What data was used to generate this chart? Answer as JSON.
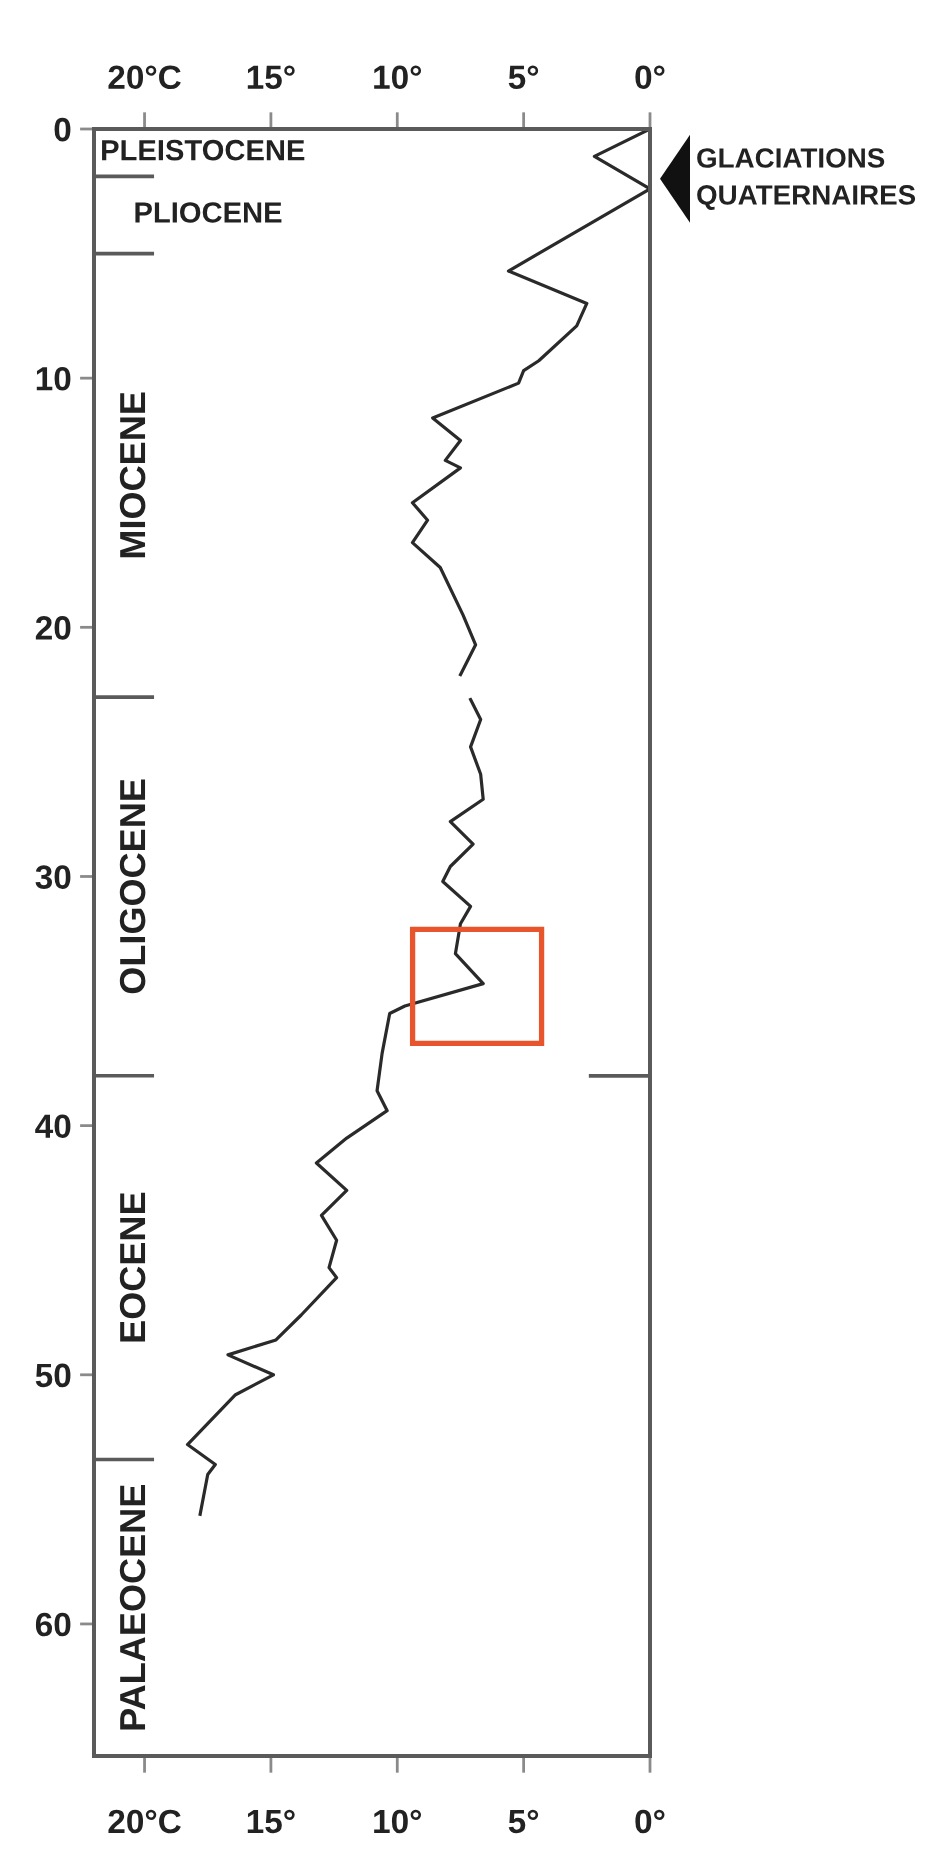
{
  "chart_data": {
    "type": "line",
    "color": "#2a2a2a",
    "x": [
      0,
      2.2,
      0,
      5.6,
      2.5,
      2.9,
      4.4,
      5.0,
      5.2,
      8.6,
      7.5,
      8.1,
      7.5,
      9.4,
      8.8,
      9.4,
      8.3,
      7.4,
      6.9,
      7.5,
      null,
      7.1,
      6.7,
      7.1,
      6.7,
      6.6,
      7.9,
      7.0,
      7.9,
      8.2,
      7.1,
      7.5,
      7.7,
      6.6,
      9.7,
      10.3,
      10.6,
      10.8,
      10.4,
      12.0,
      13.2,
      12.0,
      13.0,
      12.4,
      12.7,
      12.4,
      13.8,
      14.8,
      16.7,
      14.9,
      16.4,
      18.3,
      17.2,
      17.5,
      17.8
    ],
    "values": [
      0,
      1.1,
      2.4,
      5.7,
      7.0,
      7.9,
      9.3,
      9.7,
      10.2,
      11.6,
      12.5,
      13.3,
      13.6,
      15.0,
      15.7,
      16.6,
      17.6,
      19.5,
      20.7,
      21.9,
      null,
      22.9,
      23.7,
      24.8,
      25.9,
      26.9,
      27.8,
      28.7,
      29.6,
      30.2,
      31.2,
      31.9,
      33.1,
      34.3,
      35.2,
      35.5,
      37.1,
      38.6,
      39.4,
      40.5,
      41.5,
      42.6,
      43.6,
      44.6,
      45.7,
      46.1,
      47.6,
      48.6,
      49.2,
      50.0,
      50.8,
      52.8,
      53.6,
      54.0,
      55.6
    ],
    "xlim": [
      22,
      0
    ],
    "xticks": [
      {
        "value": 20,
        "label": "20°C"
      },
      {
        "value": 15,
        "label": "15°"
      },
      {
        "value": 10,
        "label": "10°"
      },
      {
        "value": 5,
        "label": "5°"
      },
      {
        "value": 0,
        "label": "0°"
      }
    ],
    "x2lim": [
      22,
      0
    ],
    "x2ticks": [
      {
        "value": 20,
        "label": "20°C"
      },
      {
        "value": 15,
        "label": "15°"
      },
      {
        "value": 10,
        "label": "10°"
      },
      {
        "value": 5,
        "label": "5°"
      },
      {
        "value": 0,
        "label": "0°"
      }
    ],
    "ylim": [
      65.3,
      0
    ],
    "yticks": [
      0,
      10,
      20,
      30,
      40,
      50,
      60
    ],
    "ref_lines": [
      {
        "axis": "y",
        "value": 1.9
      },
      {
        "axis": "y",
        "value": 5
      },
      {
        "axis": "y",
        "value": 22.8
      },
      {
        "axis": "y",
        "value": 38
      },
      {
        "axis": "y",
        "value": 53.4
      }
    ],
    "annotations": [
      "PLEISTOCENE",
      "PLIOCENE",
      "MIOCENE",
      "OLIGOCENE",
      "EOCENE",
      "PALAEOCENE",
      {
        "text": "GLACIATIONS\nQUATERNAIRES",
        "x": 0,
        "y": 2
      }
    ]
  }
}
